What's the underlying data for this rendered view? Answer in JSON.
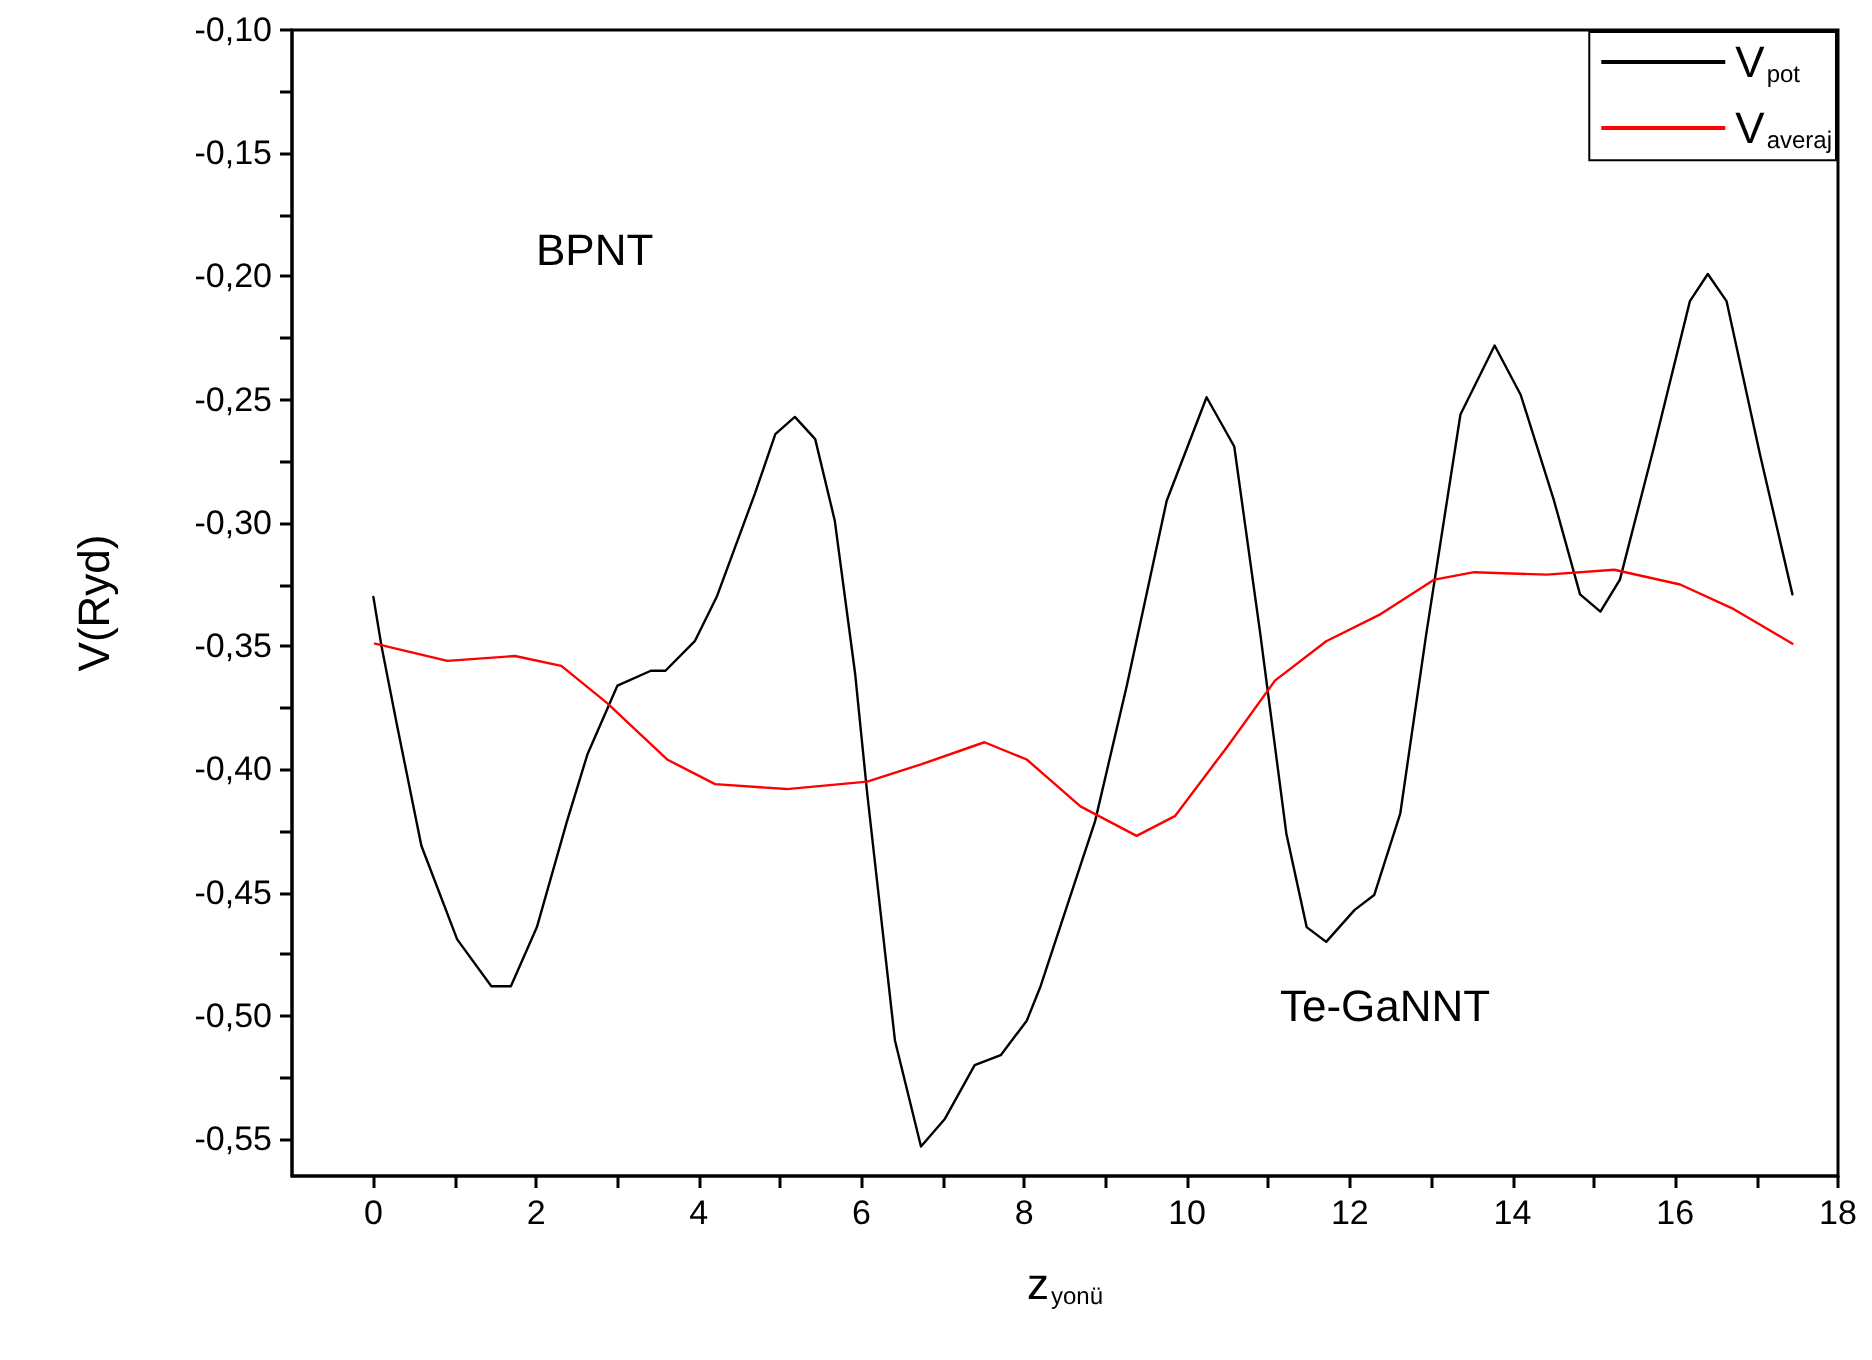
{
  "chart_data": {
    "type": "line",
    "xlabel": "z$_{yonü}$",
    "ylabel": "V(Ryd)",
    "annotations": [
      "BPNT",
      "Te-GaNNT"
    ],
    "xlim": [
      -1,
      18
    ],
    "xticks": [
      0,
      {
        "value": 1,
        "label": null
      },
      2,
      {
        "value": 3,
        "label": null
      },
      4,
      {
        "value": 5,
        "label": null
      },
      6,
      {
        "value": 7,
        "label": null
      },
      8,
      {
        "value": 9,
        "label": null
      },
      10,
      {
        "value": 11,
        "label": null
      },
      12,
      {
        "value": 13,
        "label": null
      },
      14,
      {
        "value": 15,
        "label": null
      },
      16,
      {
        "value": 17,
        "label": null
      },
      18
    ],
    "ylim": [
      -0.565,
      -0.1
    ],
    "yticks": [
      {
        "value": -0.55,
        "label": "-0,55"
      },
      {
        "value": -0.525,
        "label": null
      },
      {
        "value": -0.5,
        "label": "-0,50"
      },
      {
        "value": -0.475,
        "label": null
      },
      {
        "value": -0.45,
        "label": "-0,45"
      },
      {
        "value": -0.425,
        "label": null
      },
      {
        "value": -0.4,
        "label": "-0,40"
      },
      {
        "value": -0.375,
        "label": null
      },
      {
        "value": -0.35,
        "label": "-0,35"
      },
      {
        "value": -0.325,
        "label": null
      },
      {
        "value": -0.3,
        "label": "-0,30"
      },
      {
        "value": -0.275,
        "label": null
      },
      {
        "value": -0.25,
        "label": "-0,25"
      },
      {
        "value": -0.225,
        "label": null
      },
      {
        "value": -0.2,
        "label": "-0,20"
      },
      {
        "value": -0.175,
        "label": null
      },
      {
        "value": -0.15,
        "label": "-0,15"
      },
      {
        "value": -0.125,
        "label": null
      },
      {
        "value": -0.1,
        "label": "-0,10"
      }
    ],
    "grid": false,
    "legend": "top right",
    "line_style": "solid",
    "series": [
      {
        "name": "V$_{pot}$",
        "color": "#000000",
        "x": [
          0,
          0.1,
          0.29,
          0.59,
          1.03,
          1.45,
          1.69,
          2.01,
          2.38,
          2.63,
          3,
          3.41,
          3.59,
          3.95,
          4.22,
          4.69,
          4.94,
          5.18,
          5.43,
          5.67,
          5.92,
          6.07,
          6.41,
          6.73,
          7.02,
          7.39,
          7.71,
          8.03,
          8.2,
          8.69,
          8.87,
          9.26,
          9.75,
          10.24,
          10.58,
          10.9,
          11.22,
          11.47,
          11.71,
          12.06,
          12.3,
          12.62,
          12.94,
          13.36,
          13.78,
          14.1,
          14.51,
          14.83,
          15.08,
          15.32,
          15.74,
          16.18,
          16.4,
          16.63,
          17.04,
          17.44
        ],
        "values": [
          -0.33,
          -0.35,
          -0.382,
          -0.431,
          -0.469,
          -0.488,
          -0.488,
          -0.464,
          -0.421,
          -0.394,
          -0.366,
          -0.36,
          -0.36,
          -0.348,
          -0.33,
          -0.288,
          -0.264,
          -0.257,
          -0.266,
          -0.299,
          -0.361,
          -0.41,
          -0.51,
          -0.553,
          -0.542,
          -0.52,
          -0.516,
          -0.502,
          -0.488,
          -0.439,
          -0.421,
          -0.366,
          -0.291,
          -0.249,
          -0.269,
          -0.345,
          -0.426,
          -0.464,
          -0.47,
          -0.457,
          -0.451,
          -0.418,
          -0.345,
          -0.256,
          -0.228,
          -0.248,
          -0.291,
          -0.329,
          -0.336,
          -0.323,
          -0.269,
          -0.21,
          -0.199,
          -0.21,
          -0.272,
          -0.329
        ]
      },
      {
        "name": "V$_{averaj}$",
        "color": "#ff0000",
        "x": [
          0.02,
          0.91,
          1.74,
          2.31,
          2.87,
          3.61,
          4.2,
          5.08,
          6.07,
          6.73,
          7.51,
          8.03,
          8.69,
          9.38,
          9.85,
          10.49,
          11.08,
          11.71,
          12.38,
          13.04,
          13.53,
          14.42,
          15.25,
          16.06,
          16.72,
          17.44
        ],
        "values": [
          -0.349,
          -0.356,
          -0.354,
          -0.358,
          -0.373,
          -0.396,
          -0.406,
          -0.408,
          -0.405,
          -0.398,
          -0.389,
          -0.396,
          -0.415,
          -0.427,
          -0.419,
          -0.391,
          -0.364,
          -0.348,
          -0.337,
          -0.323,
          -0.32,
          -0.321,
          -0.319,
          -0.325,
          -0.335,
          -0.349
        ]
      }
    ]
  }
}
